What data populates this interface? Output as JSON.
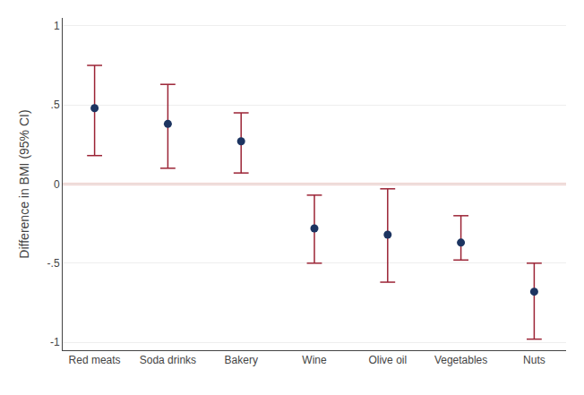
{
  "chart_data": {
    "type": "scatter",
    "ylabel": "Difference in BMI (95% CI)",
    "categories": [
      "Red meats",
      "Soda drinks",
      "Bakery",
      "Wine",
      "Olive oil",
      "Vegetables",
      "Nuts"
    ],
    "values": [
      0.48,
      0.38,
      0.27,
      -0.28,
      -0.32,
      -0.37,
      -0.68
    ],
    "color": "#1c3461",
    "marker": "circle",
    "error_bars": {
      "low": [
        0.18,
        0.1,
        0.07,
        -0.5,
        -0.62,
        -0.48,
        -0.98
      ],
      "high": [
        0.75,
        0.63,
        0.45,
        -0.07,
        -0.03,
        -0.2,
        -0.5
      ],
      "color": "#9b2335"
    },
    "reference_line": {
      "value": 0,
      "color": "#c0392b"
    },
    "ylim": [
      -1.05,
      1.05
    ],
    "yticks": [
      -1,
      {
        "value": -0.5,
        "label": "-.5"
      },
      0,
      {
        "value": 0.5,
        "label": ".5"
      },
      1
    ],
    "grid": true
  }
}
